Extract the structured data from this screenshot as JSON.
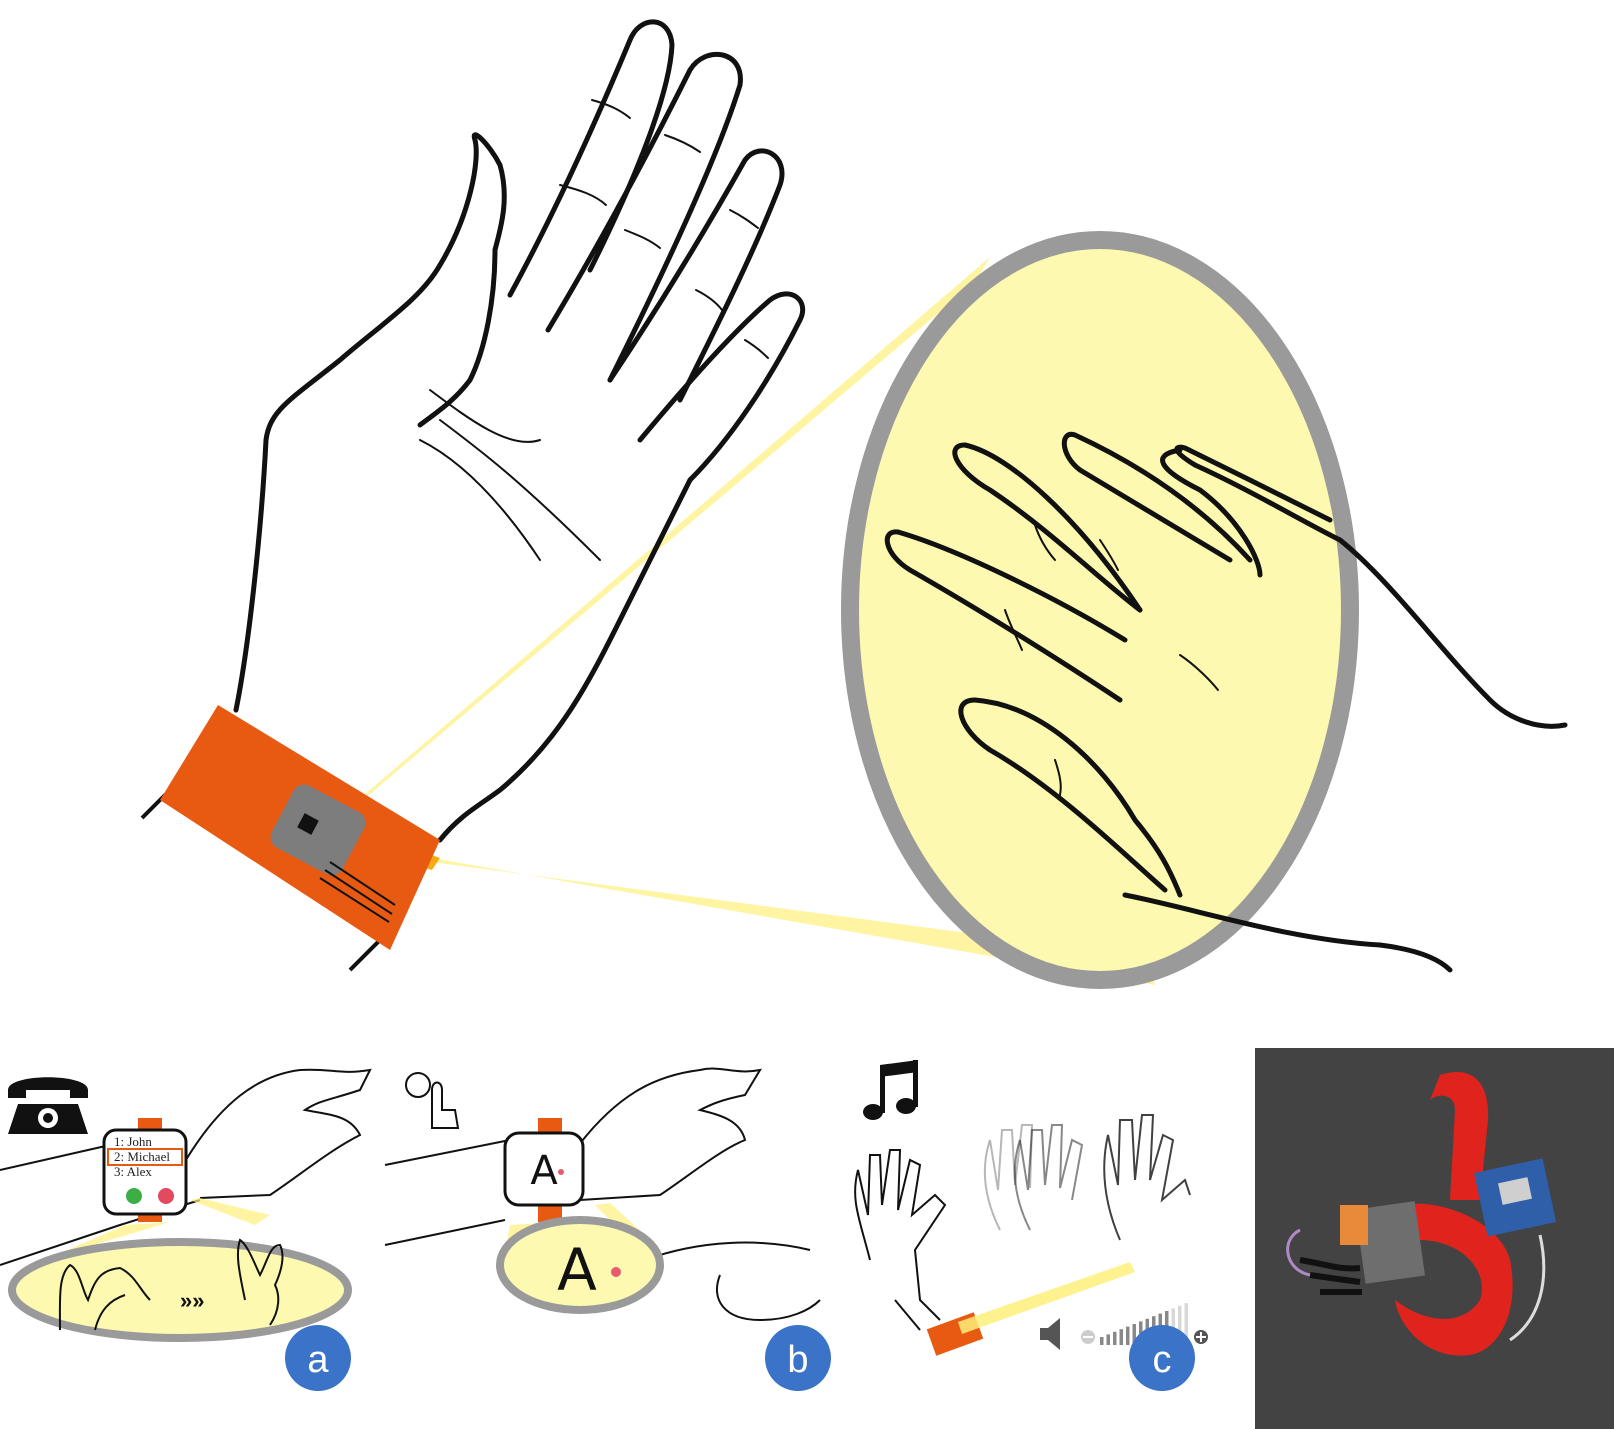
{
  "colors": {
    "wristband": "#e85a12",
    "beam": "#fdf07a",
    "lens_fill": "#fdf9b0",
    "lens_ring": "#9a9a9a",
    "badge": "#3b73c8",
    "photo_bg": "#4a4a4a",
    "photo_strap": "#e0241d"
  },
  "panels": {
    "a": {
      "label": "a",
      "icon": "telephone-icon",
      "contacts": [
        "1: John",
        "2: Michael",
        "3: Alex"
      ],
      "selected_index": 1
    },
    "b": {
      "label": "b",
      "icon": "finger-draw-icon",
      "letter": "A"
    },
    "c": {
      "label": "c",
      "icon": "music-note-icon",
      "volume_level": 0.75
    }
  }
}
